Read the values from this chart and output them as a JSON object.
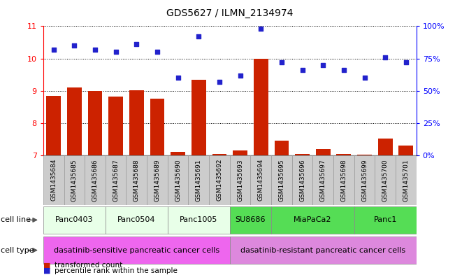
{
  "title": "GDS5627 / ILMN_2134974",
  "samples": [
    "GSM1435684",
    "GSM1435685",
    "GSM1435686",
    "GSM1435687",
    "GSM1435688",
    "GSM1435689",
    "GSM1435690",
    "GSM1435691",
    "GSM1435692",
    "GSM1435693",
    "GSM1435694",
    "GSM1435695",
    "GSM1435696",
    "GSM1435697",
    "GSM1435698",
    "GSM1435699",
    "GSM1435700",
    "GSM1435701"
  ],
  "bar_values": [
    8.85,
    9.1,
    9.0,
    8.82,
    9.02,
    8.75,
    7.12,
    9.35,
    7.05,
    7.15,
    10.0,
    7.45,
    7.05,
    7.2,
    7.05,
    7.02,
    7.52,
    7.3
  ],
  "dot_values": [
    82,
    85,
    82,
    80,
    86,
    80,
    60,
    92,
    57,
    62,
    98,
    72,
    66,
    70,
    66,
    60,
    76,
    72
  ],
  "ylim_left": [
    7,
    11
  ],
  "ylim_right": [
    0,
    100
  ],
  "yticks_left": [
    7,
    8,
    9,
    10,
    11
  ],
  "yticks_right": [
    0,
    25,
    50,
    75,
    100
  ],
  "ytick_labels_right": [
    "0%",
    "25%",
    "50%",
    "75%",
    "100%"
  ],
  "bar_color": "#cc2200",
  "dot_color": "#2222cc",
  "cell_lines": [
    {
      "label": "Panc0403",
      "start": 0,
      "end": 2,
      "color": "#e8ffe8"
    },
    {
      "label": "Panc0504",
      "start": 3,
      "end": 5,
      "color": "#e8ffe8"
    },
    {
      "label": "Panc1005",
      "start": 6,
      "end": 8,
      "color": "#e8ffe8"
    },
    {
      "label": "SU8686",
      "start": 9,
      "end": 10,
      "color": "#55dd55"
    },
    {
      "label": "MiaPaCa2",
      "start": 11,
      "end": 14,
      "color": "#55dd55"
    },
    {
      "label": "Panc1",
      "start": 15,
      "end": 17,
      "color": "#55dd55"
    }
  ],
  "cell_types": [
    {
      "label": "dasatinib-sensitive pancreatic cancer cells",
      "start": 0,
      "end": 8,
      "color": "#ee66ee"
    },
    {
      "label": "dasatinib-resistant pancreatic cancer cells",
      "start": 9,
      "end": 17,
      "color": "#dd88dd"
    }
  ],
  "cell_line_label": "cell line",
  "cell_type_label": "cell type",
  "legend_bar": "transformed count",
  "legend_dot": "percentile rank within the sample",
  "background_color": "#ffffff",
  "sample_box_color": "#cccccc",
  "sample_box_edge": "#999999"
}
